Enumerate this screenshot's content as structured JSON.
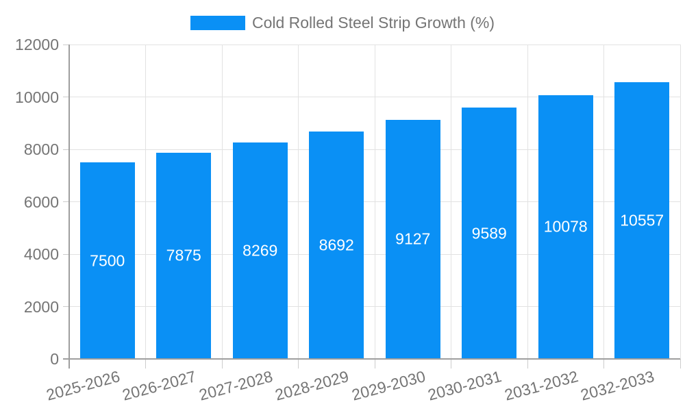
{
  "chart_data": {
    "type": "bar",
    "title": "Cold Rolled Steel Strip Growth (%)",
    "categories": [
      "2025-2026",
      "2026-2027",
      "2027-2028",
      "2028-2029",
      "2029-2030",
      "2030-2031",
      "2031-2032",
      "2032-2033"
    ],
    "values": [
      7500,
      7875,
      8269,
      8692,
      9127,
      9589,
      10078,
      10557
    ],
    "value_labels": [
      "7500",
      "7875",
      "8269",
      "8692",
      "9127",
      "9589",
      "10078",
      "10557"
    ],
    "xlabel": "",
    "ylabel": "",
    "ylim": [
      0,
      12000
    ],
    "ytick_interval": 2000,
    "yticks": [
      0,
      2000,
      4000,
      6000,
      8000,
      10000,
      12000
    ],
    "ytick_labels": [
      "0",
      "2000",
      "4000",
      "6000",
      "8000",
      "10000",
      "12000"
    ],
    "grid": true,
    "legend_position": "top",
    "colors": {
      "bar": "#0a90f5",
      "bar_value_text": "#ffffff",
      "axis_line": "#9e9e9e",
      "gridline": "#e2e2e2",
      "tick": "#cccccc",
      "axis_label_text": "#757575",
      "legend_text": "#757575",
      "background": "#ffffff"
    }
  }
}
